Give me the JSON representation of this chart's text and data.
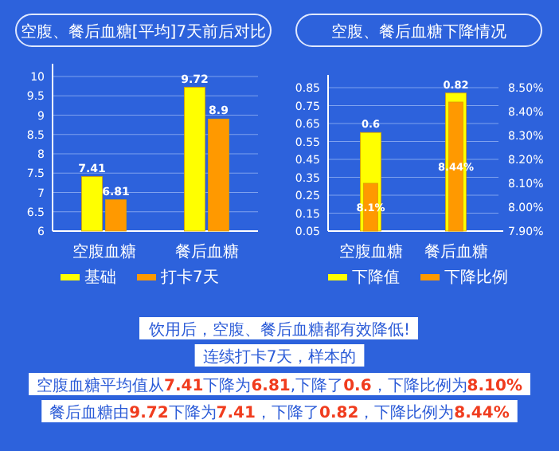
{
  "chart_data": [
    {
      "type": "bar",
      "title": "空腹、餐后血糖[平均]7天前后对比",
      "categories": [
        "空腹血糖",
        "餐后血糖"
      ],
      "series": [
        {
          "name": "基础",
          "color": "#ffff00",
          "values": [
            7.41,
            9.72
          ]
        },
        {
          "name": "打卡7天",
          "color": "#ff9900",
          "values": [
            6.81,
            8.9
          ]
        }
      ],
      "ylim": [
        6,
        10
      ],
      "yticks": [
        6,
        6.5,
        7,
        7.5,
        8,
        8.5,
        9,
        9.5,
        10
      ],
      "grid": "y",
      "legend": "bottom",
      "data_labels": true
    },
    {
      "type": "bar",
      "title": "空腹、餐后血糖下降情况",
      "categories": [
        "空腹血糖",
        "餐后血糖"
      ],
      "series": [
        {
          "name": "下降值",
          "color": "#ffff00",
          "values": [
            0.6,
            0.82
          ],
          "value_labels": [
            "0.6",
            "0.82"
          ]
        },
        {
          "name": "下降比例",
          "color": "#ff9900",
          "axis": "y2",
          "values": [
            8.1,
            8.44
          ],
          "value_labels": [
            "8.1%",
            "8.44%"
          ]
        }
      ],
      "ylim": [
        0.05,
        0.85
      ],
      "yticks": [
        0.05,
        0.15,
        0.25,
        0.35,
        0.45,
        0.55,
        0.65,
        0.75,
        0.85
      ],
      "y2lim": [
        7.9,
        8.5
      ],
      "y2ticks": [
        {
          "value": 7.9,
          "label": "7.90%"
        },
        {
          "value": 8.0,
          "label": "8.00%"
        },
        {
          "value": 8.1,
          "label": "8.10%"
        },
        {
          "value": 8.2,
          "label": "8.20%"
        },
        {
          "value": 8.3,
          "label": "8.30%"
        },
        {
          "value": 8.4,
          "label": "8.40%"
        },
        {
          "value": 8.5,
          "label": "8.50%"
        }
      ],
      "grid": "y",
      "legend": "bottom"
    },
    {
      "type": "other",
      "annotations": [
        "饮用后，空腹、餐后血糖都有效降低!",
        "连续打卡7天，样本的",
        "空腹血糖平均值从**7.41**下降为**6.81**,下降了**0.6**，下降比例为**8.10%**",
        "餐后血糖由**9.72**下降为**7.41**，下降了**0.82**，下降比例为**8.44%**"
      ]
    }
  ]
}
